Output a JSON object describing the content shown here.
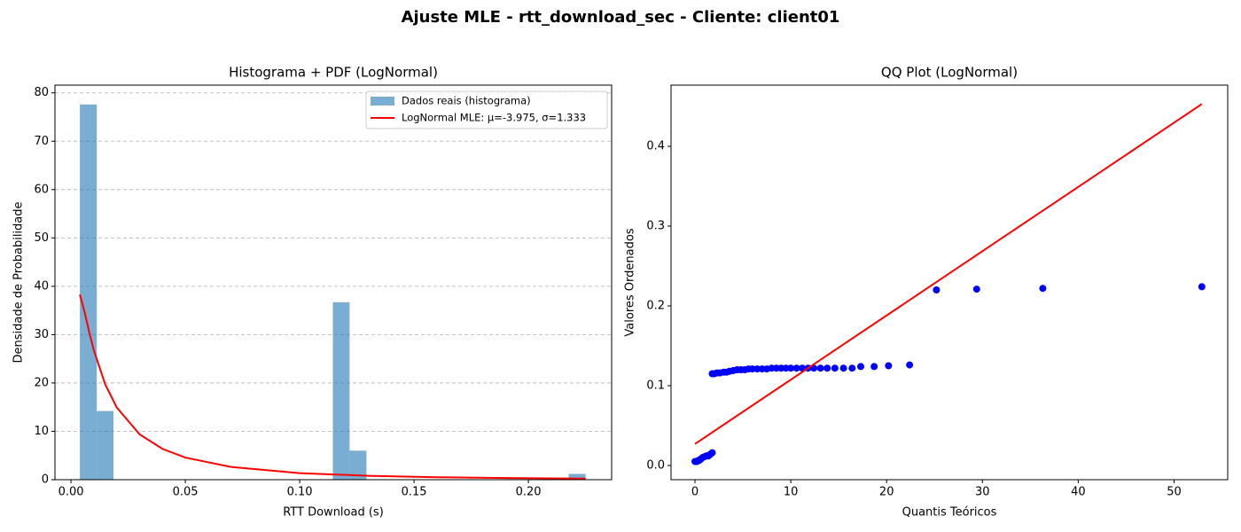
{
  "title": "Ajuste MLE - rtt_download_sec - Cliente: client01",
  "chart_data": [
    {
      "type": "histogram",
      "title": "Histograma + PDF (LogNormal)",
      "x_label": "RTT Download (s)",
      "y_label": "Densidade de Probabilidade",
      "bins": [
        0.0039,
        0.0113,
        0.0186,
        0.026,
        0.0334,
        0.0408,
        0.0481,
        0.0555,
        0.0629,
        0.0702,
        0.0776,
        0.085,
        0.0923,
        0.0997,
        0.1071,
        0.1145,
        0.1218,
        0.1292,
        0.1366,
        0.1439,
        0.1513,
        0.1587,
        0.166,
        0.1734,
        0.1808,
        0.1882,
        0.1955,
        0.2029,
        0.2103,
        0.2176,
        0.225
      ],
      "series": [
        {
          "name": "Dados reais (histograma)",
          "color": "#1f77b4",
          "opacity": 0.6,
          "values": [
            77.6,
            14.2,
            0,
            0,
            0,
            0,
            0,
            0,
            0,
            0,
            0,
            0,
            0,
            0,
            0,
            36.7,
            6.0,
            0,
            0,
            0,
            0,
            0,
            0,
            0,
            0,
            0,
            0,
            0,
            0,
            1.2
          ]
        },
        {
          "name": "LogNormal MLE: μ=-3.975, σ=1.333",
          "color": "#ff0000",
          "x": [
            0.0039,
            0.006,
            0.008,
            0.01,
            0.015,
            0.02,
            0.03,
            0.04,
            0.05,
            0.07,
            0.1,
            0.13,
            0.16,
            0.19,
            0.225
          ],
          "values": [
            38.29,
            34.58,
            30.48,
            26.76,
            19.67,
            14.95,
            9.38,
            6.37,
            4.57,
            2.63,
            1.36,
            0.8,
            0.51,
            0.35,
            0.23
          ]
        }
      ],
      "xlim": [
        -0.007,
        0.2364
      ],
      "ylim": [
        0,
        81.6
      ],
      "xticks": [
        {
          "value": 0,
          "label": "0.00"
        },
        {
          "value": 0.05,
          "label": "0.05"
        },
        {
          "value": 0.1,
          "label": "0.10"
        },
        {
          "value": 0.15,
          "label": "0.15"
        },
        {
          "value": 0.2,
          "label": "0.20"
        }
      ],
      "yticks": [
        0,
        10,
        20,
        30,
        40,
        50,
        60,
        70,
        80
      ],
      "grid": "y",
      "legend": "upper right"
    },
    {
      "type": "scatter",
      "title": "QQ Plot (LogNormal)",
      "x_label": "Quantis Teóricos",
      "y_label": "Valores Ordenados",
      "color": "#0000ff",
      "x": [
        0,
        0.1,
        0.2,
        0.3,
        0.4,
        0.5,
        0.6,
        0.8,
        1.0,
        1.2,
        1.4,
        1.6,
        1.8,
        1.8,
        2.0,
        2.3,
        2.6,
        3.0,
        3.3,
        3.6,
        4.0,
        4.4,
        4.8,
        5.2,
        5.6,
        6.0,
        6.5,
        7.0,
        7.5,
        8.0,
        8.5,
        9.0,
        9.5,
        10.0,
        10.6,
        11.2,
        11.8,
        12.4,
        13.1,
        13.8,
        14.6,
        15.5,
        16.4,
        17.3,
        18.7,
        20.2,
        22.4,
        25.2,
        29.4,
        36.3,
        52.9
      ],
      "values": [
        0.005,
        0.005,
        0.005,
        0.006,
        0.006,
        0.007,
        0.008,
        0.01,
        0.011,
        0.012,
        0.012,
        0.014,
        0.016,
        0.115,
        0.115,
        0.116,
        0.116,
        0.117,
        0.117,
        0.118,
        0.119,
        0.12,
        0.12,
        0.12,
        0.121,
        0.121,
        0.121,
        0.121,
        0.121,
        0.122,
        0.122,
        0.122,
        0.122,
        0.122,
        0.122,
        0.122,
        0.122,
        0.122,
        0.122,
        0.122,
        0.122,
        0.122,
        0.122,
        0.124,
        0.124,
        0.125,
        0.126,
        0.22,
        0.221,
        0.222,
        0.224
      ],
      "line": {
        "color": "#ff0000",
        "x": [
          0,
          52.9
        ],
        "values": [
          0.027,
          0.453
        ]
      },
      "xlim": [
        -2.5,
        55.6
      ],
      "ylim": [
        -0.0178,
        0.4767
      ],
      "xticks": [
        0,
        10,
        20,
        30,
        40,
        50
      ],
      "yticks": [
        {
          "value": 0,
          "label": "0.0"
        },
        0.1,
        0.2,
        0.3,
        0.4
      ]
    }
  ]
}
